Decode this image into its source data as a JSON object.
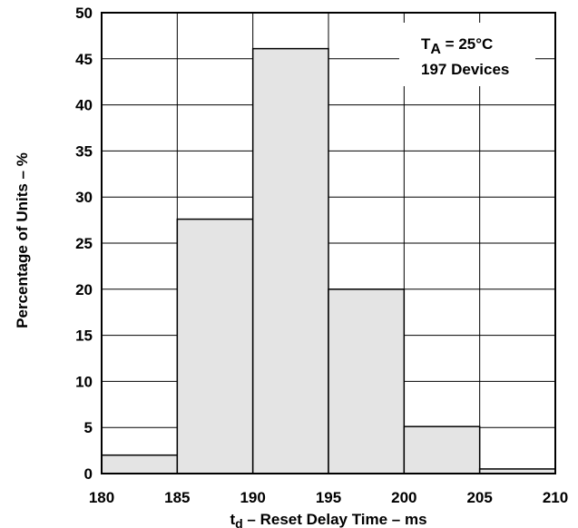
{
  "chart_data": {
    "type": "bar",
    "bins": [
      {
        "start": 180,
        "end": 185,
        "value": 2.0
      },
      {
        "start": 185,
        "end": 190,
        "value": 27.6
      },
      {
        "start": 190,
        "end": 195,
        "value": 46.1
      },
      {
        "start": 195,
        "end": 200,
        "value": 20.0
      },
      {
        "start": 200,
        "end": 205,
        "value": 5.1
      },
      {
        "start": 205,
        "end": 210,
        "value": 0.5
      }
    ],
    "xlim": [
      180,
      210
    ],
    "ylim": [
      0,
      50
    ],
    "x_ticks": [
      "180",
      "185",
      "190",
      "195",
      "200",
      "205",
      "210"
    ],
    "y_ticks": [
      "0",
      "5",
      "10",
      "15",
      "20",
      "25",
      "30",
      "35",
      "40",
      "45",
      "50"
    ],
    "xlabel": {
      "main": "t",
      "subscript": "d",
      "rest": " – Reset Delay Time – ms"
    },
    "ylabel": "Percentage of Units – %",
    "grid": true,
    "annotation": {
      "line1": {
        "main": "T",
        "subscript": "A",
        "rest": " = 25°C"
      },
      "line2": "197 Devices"
    },
    "colors": {
      "bar_fill": "#e4e4e4",
      "bar_stroke": "#000000",
      "grid": "#000000"
    }
  }
}
